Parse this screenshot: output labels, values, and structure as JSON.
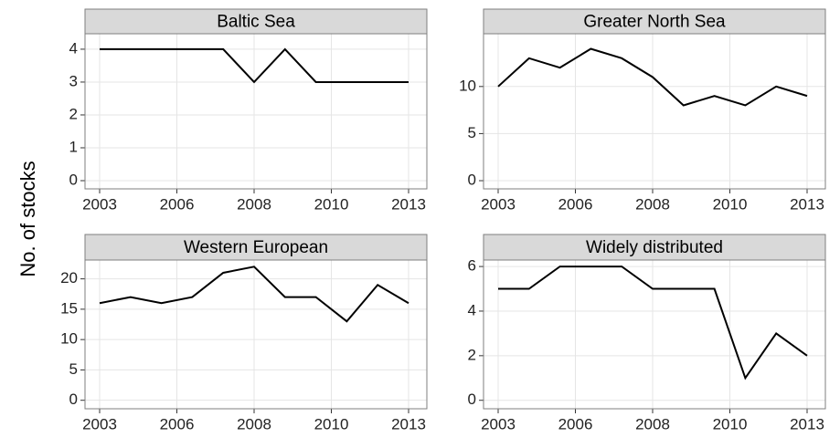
{
  "y_label": "No. of stocks",
  "chart_data": [
    {
      "type": "line",
      "title": "Baltic Sea",
      "x": [
        2003,
        2004,
        2005,
        2006,
        2007,
        2008,
        2009,
        2010,
        2011,
        2012,
        2013
      ],
      "values": [
        4,
        4,
        4,
        4,
        4,
        3,
        4,
        3,
        3,
        3,
        3
      ],
      "color": "#000000",
      "xlim": [
        2003,
        2013
      ],
      "xticks": [
        2003,
        {
          "value": 2005.5,
          "label": "2006"
        },
        2008,
        {
          "value": 2010.5,
          "label": "2010"
        },
        2013
      ],
      "ylim": [
        -0.25,
        4.47
      ],
      "yticks": [
        0,
        1,
        2,
        3,
        4
      ],
      "grid": true
    },
    {
      "type": "line",
      "title": "Greater North Sea",
      "x": [
        2003,
        2004,
        2005,
        2006,
        2007,
        2008,
        2009,
        2010,
        2011,
        2012,
        2013
      ],
      "values": [
        10,
        13,
        12,
        14,
        13,
        11,
        8,
        9,
        8,
        10,
        9
      ],
      "color": "#000000",
      "xlim": [
        2003,
        2013
      ],
      "xticks": [
        2003,
        {
          "value": 2005.5,
          "label": "2006"
        },
        2008,
        {
          "value": 2010.5,
          "label": "2010"
        },
        2013
      ],
      "ylim": [
        -0.87,
        15.6
      ],
      "yticks": [
        0,
        5,
        10
      ],
      "grid": true
    },
    {
      "type": "line",
      "title": "Western European",
      "x": [
        2003,
        2004,
        2005,
        2006,
        2007,
        2008,
        2009,
        2010,
        2011,
        2012,
        2013
      ],
      "values": [
        16,
        17,
        16,
        17,
        21,
        22,
        17,
        17,
        13,
        19,
        16
      ],
      "color": "#000000",
      "xlim": [
        2003,
        2013
      ],
      "xticks": [
        2003,
        {
          "value": 2005.5,
          "label": "2006"
        },
        2008,
        {
          "value": 2010.5,
          "label": "2010"
        },
        2013
      ],
      "ylim": [
        -1.4,
        23.1
      ],
      "yticks": [
        0,
        5,
        10,
        15,
        20
      ],
      "grid": true
    },
    {
      "type": "line",
      "title": "Widely distributed",
      "x": [
        2003,
        2004,
        2005,
        2006,
        2007,
        2008,
        2009,
        2010,
        2011,
        2012,
        2013
      ],
      "values": [
        5,
        5,
        6,
        6,
        6,
        5,
        5,
        5,
        1,
        3,
        2
      ],
      "color": "#000000",
      "xlim": [
        2003,
        2013
      ],
      "xticks": [
        2003,
        {
          "value": 2005.5,
          "label": "2006"
        },
        2008,
        {
          "value": 2010.5,
          "label": "2010"
        },
        2013
      ],
      "ylim": [
        -0.38,
        6.29
      ],
      "yticks": [
        0,
        2,
        4,
        6
      ],
      "grid": true
    }
  ]
}
